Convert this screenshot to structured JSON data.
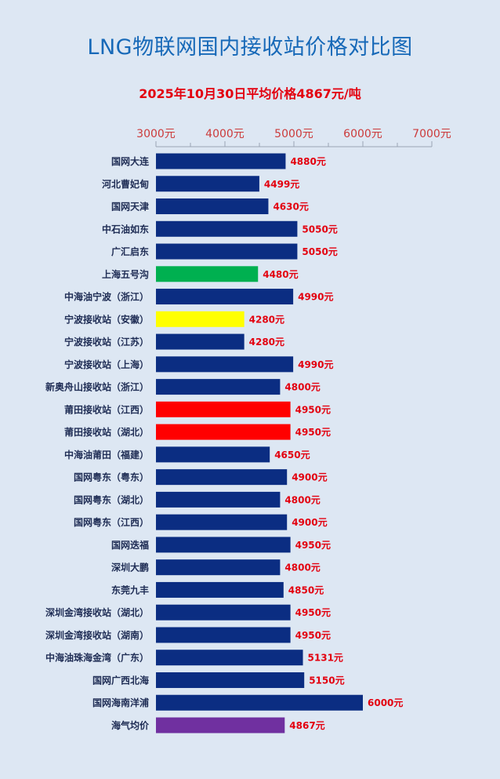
{
  "title": "LNG物联网国内接收站价格对比图",
  "subtitle": "2025年10月30日平均价格4867元/吨",
  "colors": {
    "default_bar": "#0b2d82",
    "green": "#00b050",
    "yellow": "#ffff00",
    "red": "#ff0000",
    "purple": "#7030a0",
    "value_label": "#e3000f",
    "tick_label": "#cc3b3b",
    "category_label": "#1f2d55",
    "axis": "#9aa4b5"
  },
  "chart_data": {
    "type": "bar",
    "orientation": "horizontal",
    "title": "LNG物联网国内接收站价格对比图",
    "subtitle": "2025年10月30日平均价格4867元/吨",
    "xlim": [
      3000,
      7000
    ],
    "x_ticks": [
      3000,
      4000,
      5000,
      6000,
      7000
    ],
    "x_tick_labels": [
      "3000元",
      "4000元",
      "5000元",
      "6000元",
      "7000元"
    ],
    "axis_position": "top",
    "grid": false,
    "legend": "none",
    "categories": [
      "国网大连",
      "河北曹妃甸",
      "国网天津",
      "中石油如东",
      "广汇启东",
      "上海五号沟",
      "中海油宁波（浙江）",
      "宁波接收站（安徽）",
      "宁波接收站（江苏）",
      "宁波接收站（上海）",
      "新奥舟山接收站（浙江）",
      "莆田接收站（江西）",
      "莆田接收站（湖北）",
      "中海油莆田（福建）",
      "国网粤东（粤东）",
      "国网粤东（湖北）",
      "国网粤东（江西）",
      "国网迭福",
      "深圳大鹏",
      "东莞九丰",
      "深圳金湾接收站（湖北）",
      "深圳金湾接收站（湖南）",
      "中海油珠海金湾（广东）",
      "国网广西北海",
      "国网海南洋浦",
      "海气均价"
    ],
    "values": [
      4880,
      4499,
      4630,
      5050,
      5050,
      4480,
      4990,
      4280,
      4280,
      4990,
      4800,
      4950,
      4950,
      4650,
      4900,
      4800,
      4900,
      4950,
      4800,
      4850,
      4950,
      4950,
      5131,
      5150,
      6000,
      4867
    ],
    "value_labels": [
      "4880元",
      "4499元",
      "4630元",
      "5050元",
      "5050元",
      "4480元",
      "4990元",
      "4280元",
      "4280元",
      "4990元",
      "4800元",
      "4950元",
      "4950元",
      "4650元",
      "4900元",
      "4800元",
      "4900元",
      "4950元",
      "4800元",
      "4850元",
      "4950元",
      "4950元",
      "5131元",
      "5150元",
      "6000元",
      "4867元"
    ],
    "bar_colors": [
      "#0b2d82",
      "#0b2d82",
      "#0b2d82",
      "#0b2d82",
      "#0b2d82",
      "#00b050",
      "#0b2d82",
      "#ffff00",
      "#0b2d82",
      "#0b2d82",
      "#0b2d82",
      "#ff0000",
      "#ff0000",
      "#0b2d82",
      "#0b2d82",
      "#0b2d82",
      "#0b2d82",
      "#0b2d82",
      "#0b2d82",
      "#0b2d82",
      "#0b2d82",
      "#0b2d82",
      "#0b2d82",
      "#0b2d82",
      "#0b2d82",
      "#7030a0"
    ]
  }
}
